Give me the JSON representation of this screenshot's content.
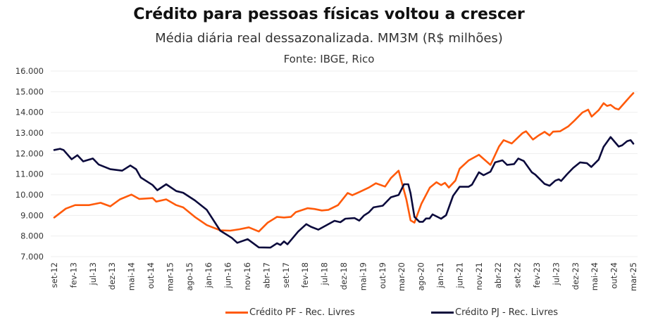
{
  "chart_data": {
    "type": "line",
    "title": "Crédito para pessoas físicas voltou a crescer",
    "subtitle": "Média diária real dessazonalizada. MM3M (R$ milhões)",
    "source": "Fonte: IBGE, Rico",
    "xlabel": "",
    "ylabel": "",
    "x_unit": "months since set-12",
    "xlim": [
      0,
      150
    ],
    "ylim": [
      7000,
      16000
    ],
    "yticks": [
      {
        "v": 7000,
        "label": "7.000"
      },
      {
        "v": 8000,
        "label": "8.000"
      },
      {
        "v": 9000,
        "label": "9.000"
      },
      {
        "v": 10000,
        "label": "10.000"
      },
      {
        "v": 11000,
        "label": "11.000"
      },
      {
        "v": 12000,
        "label": "12.000"
      },
      {
        "v": 13000,
        "label": "13.000"
      },
      {
        "v": 14000,
        "label": "14.000"
      },
      {
        "v": 15000,
        "label": "15.000"
      },
      {
        "v": 16000,
        "label": "16.000"
      }
    ],
    "xticks": [
      "set-12",
      "fev-13",
      "jul-13",
      "dez-13",
      "mai-14",
      "out-14",
      "mar-15",
      "ago-15",
      "jan-16",
      "jun-16",
      "nov-16",
      "abr-17",
      "set-17",
      "fev-18",
      "jul-18",
      "dez-18",
      "mai-19",
      "out-19",
      "mar-20",
      "ago-20",
      "jan-21",
      "jun-21",
      "nov-21",
      "abr-22",
      "set-22",
      "fev-23",
      "jul-23",
      "dez-23",
      "mai-24",
      "out-24",
      "mar-25"
    ],
    "grid": true,
    "legend_position": "bottom",
    "series": [
      {
        "name": "Crédito PF - Rec. Livres",
        "color": "#ff5a0a",
        "points": [
          [
            0,
            8900
          ],
          [
            3,
            9330
          ],
          [
            5.4,
            9500
          ],
          [
            9,
            9500
          ],
          [
            12,
            9610
          ],
          [
            14.5,
            9440
          ],
          [
            17,
            9780
          ],
          [
            20,
            10010
          ],
          [
            22,
            9800
          ],
          [
            25.5,
            9840
          ],
          [
            26.4,
            9670
          ],
          [
            29,
            9780
          ],
          [
            31.6,
            9500
          ],
          [
            33.4,
            9390
          ],
          [
            36.4,
            8930
          ],
          [
            39.5,
            8530
          ],
          [
            43,
            8280
          ],
          [
            45.6,
            8260
          ],
          [
            48,
            8330
          ],
          [
            50.4,
            8420
          ],
          [
            53,
            8220
          ],
          [
            55.3,
            8650
          ],
          [
            57.7,
            8930
          ],
          [
            59.5,
            8900
          ],
          [
            61.3,
            8930
          ],
          [
            62.6,
            9160
          ],
          [
            65.6,
            9350
          ],
          [
            67.4,
            9310
          ],
          [
            69.3,
            9240
          ],
          [
            71,
            9270
          ],
          [
            73.5,
            9500
          ],
          [
            76,
            10090
          ],
          [
            77.2,
            9980
          ],
          [
            79,
            10130
          ],
          [
            81.5,
            10350
          ],
          [
            83.3,
            10560
          ],
          [
            85.7,
            10400
          ],
          [
            87.2,
            10810
          ],
          [
            89.2,
            11170
          ],
          [
            91.2,
            9780
          ],
          [
            92.3,
            8760
          ],
          [
            93.3,
            8650
          ],
          [
            95.1,
            9560
          ],
          [
            97.3,
            10350
          ],
          [
            99,
            10610
          ],
          [
            100.2,
            10470
          ],
          [
            101.2,
            10580
          ],
          [
            102.2,
            10350
          ],
          [
            103.9,
            10690
          ],
          [
            105,
            11260
          ],
          [
            107.3,
            11660
          ],
          [
            110,
            11940
          ],
          [
            113,
            11450
          ],
          [
            115.2,
            12340
          ],
          [
            116.4,
            12650
          ],
          [
            118.5,
            12490
          ],
          [
            121.3,
            12990
          ],
          [
            122.2,
            13080
          ],
          [
            124,
            12680
          ],
          [
            125.5,
            12880
          ],
          [
            127,
            13050
          ],
          [
            128.3,
            12880
          ],
          [
            129.2,
            13060
          ],
          [
            131,
            13080
          ],
          [
            133.1,
            13310
          ],
          [
            134.7,
            13590
          ],
          [
            136.8,
            13990
          ],
          [
            138.3,
            14130
          ],
          [
            139.2,
            13790
          ],
          [
            141,
            14100
          ],
          [
            142.3,
            14440
          ],
          [
            143.2,
            14310
          ],
          [
            144.1,
            14360
          ],
          [
            145.3,
            14190
          ],
          [
            146.2,
            14140
          ],
          [
            149,
            14730
          ],
          [
            150,
            14930
          ]
        ]
      },
      {
        "name": "Crédito PJ - Rec. Livres",
        "color": "#0b0a3c",
        "points": [
          [
            0,
            12170
          ],
          [
            1.5,
            12230
          ],
          [
            2.4,
            12170
          ],
          [
            4.5,
            11720
          ],
          [
            6,
            11920
          ],
          [
            7.5,
            11620
          ],
          [
            10,
            11760
          ],
          [
            11.5,
            11470
          ],
          [
            14.5,
            11240
          ],
          [
            17.6,
            11170
          ],
          [
            19.7,
            11420
          ],
          [
            21.2,
            11240
          ],
          [
            22.4,
            10840
          ],
          [
            25.5,
            10470
          ],
          [
            26.7,
            10220
          ],
          [
            29,
            10510
          ],
          [
            31.6,
            10180
          ],
          [
            33.4,
            10100
          ],
          [
            36.4,
            9730
          ],
          [
            39.5,
            9270
          ],
          [
            43,
            8260
          ],
          [
            46,
            7910
          ],
          [
            47.4,
            7670
          ],
          [
            50.1,
            7850
          ],
          [
            53,
            7450
          ],
          [
            56,
            7440
          ],
          [
            57.7,
            7650
          ],
          [
            58.6,
            7570
          ],
          [
            59.5,
            7740
          ],
          [
            60.4,
            7600
          ],
          [
            63.2,
            8220
          ],
          [
            65.3,
            8580
          ],
          [
            66.5,
            8450
          ],
          [
            68.4,
            8310
          ],
          [
            72.6,
            8740
          ],
          [
            74.1,
            8670
          ],
          [
            75.4,
            8840
          ],
          [
            77.8,
            8870
          ],
          [
            79,
            8750
          ],
          [
            80.2,
            8990
          ],
          [
            81.5,
            9150
          ],
          [
            82.7,
            9390
          ],
          [
            85.1,
            9470
          ],
          [
            87.2,
            9880
          ],
          [
            89.2,
            9990
          ],
          [
            90.6,
            10510
          ],
          [
            91.7,
            10510
          ],
          [
            92.3,
            10070
          ],
          [
            93.3,
            8930
          ],
          [
            94.6,
            8690
          ],
          [
            95.5,
            8690
          ],
          [
            96.3,
            8850
          ],
          [
            97.2,
            8850
          ],
          [
            98,
            9050
          ],
          [
            100.2,
            8840
          ],
          [
            101.5,
            9010
          ],
          [
            103.3,
            9950
          ],
          [
            105,
            10390
          ],
          [
            107.3,
            10390
          ],
          [
            108.2,
            10490
          ],
          [
            110,
            11090
          ],
          [
            111.2,
            10950
          ],
          [
            113,
            11120
          ],
          [
            114.2,
            11570
          ],
          [
            116.1,
            11670
          ],
          [
            117.3,
            11450
          ],
          [
            119.1,
            11490
          ],
          [
            120.2,
            11760
          ],
          [
            121.6,
            11640
          ],
          [
            123.7,
            11090
          ],
          [
            124.6,
            10980
          ],
          [
            127,
            10530
          ],
          [
            128.3,
            10440
          ],
          [
            129.8,
            10690
          ],
          [
            130.7,
            10750
          ],
          [
            131.3,
            10670
          ],
          [
            132.8,
            10990
          ],
          [
            134.4,
            11300
          ],
          [
            136.2,
            11570
          ],
          [
            138,
            11530
          ],
          [
            139.1,
            11350
          ],
          [
            141,
            11700
          ],
          [
            142.3,
            12330
          ],
          [
            144.1,
            12800
          ],
          [
            146.2,
            12340
          ],
          [
            147.1,
            12400
          ],
          [
            148.4,
            12600
          ],
          [
            149.3,
            12650
          ],
          [
            150,
            12480
          ]
        ]
      }
    ]
  }
}
